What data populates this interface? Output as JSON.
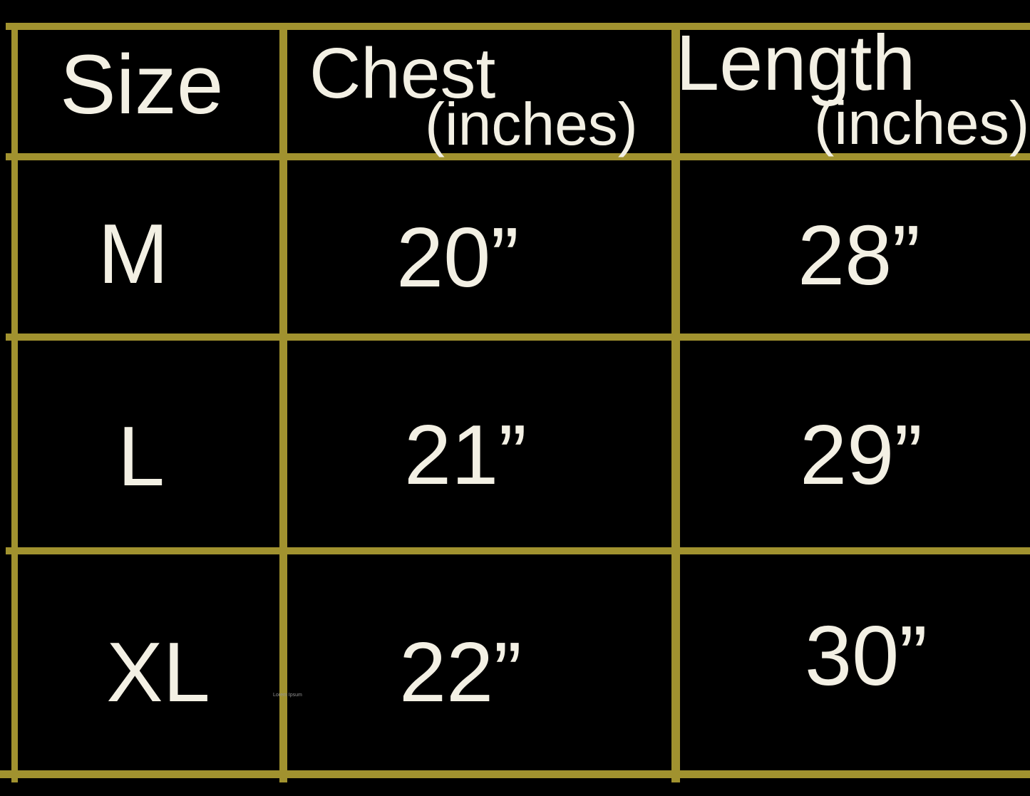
{
  "colors": {
    "border": "#a1922f",
    "background": "#000000",
    "text": "#f3f0e4",
    "watermark": "#949494"
  },
  "header": {
    "size": "Size",
    "chest": "Chest",
    "chest_unit": "(inches)",
    "length": "Length",
    "length_unit": "(inches)"
  },
  "rows": [
    {
      "size": "M",
      "chest": "20”",
      "length": "28”"
    },
    {
      "size": "L",
      "chest": "21”",
      "length": "29”"
    },
    {
      "size": "XL",
      "chest": "22”",
      "length": "30”"
    }
  ],
  "watermark": "Lorem Ipsum",
  "chart_data": {
    "type": "table",
    "columns": [
      "Size",
      "Chest (inches)",
      "Length (inches)"
    ],
    "rows": [
      [
        "M",
        "20”",
        "28”"
      ],
      [
        "L",
        "21”",
        "29”"
      ],
      [
        "XL",
        "22”",
        "30”"
      ]
    ]
  }
}
